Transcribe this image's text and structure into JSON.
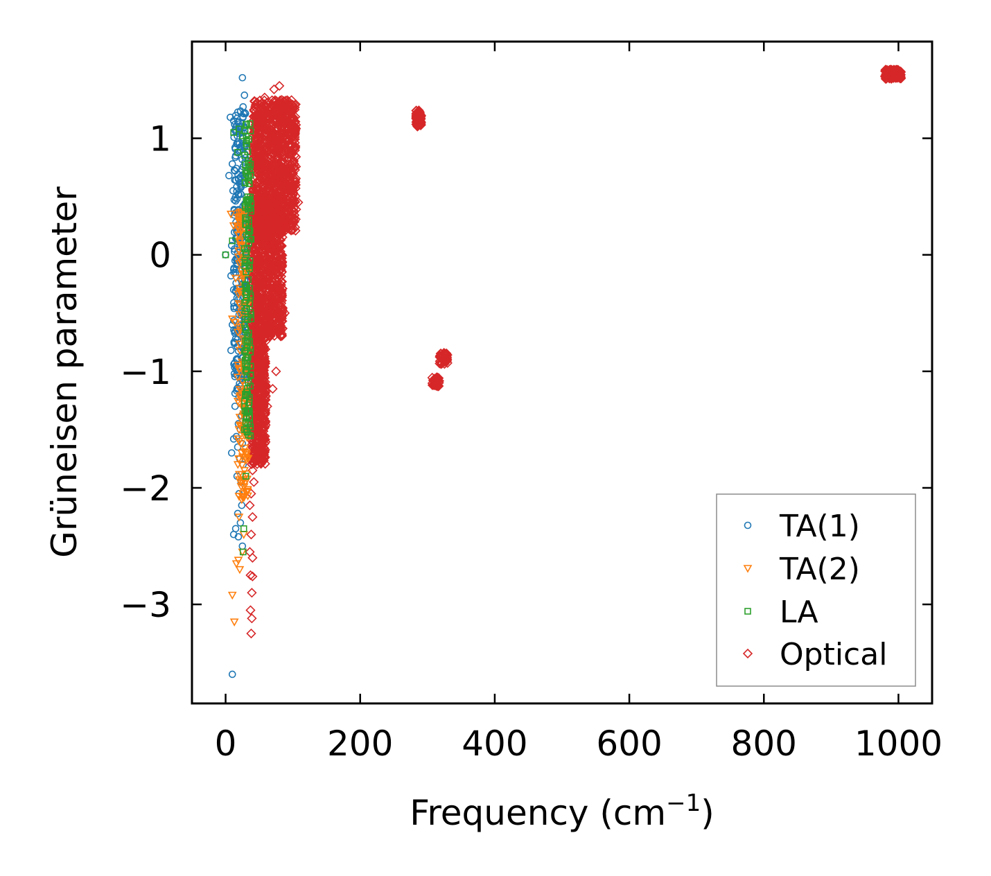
{
  "chart_data": {
    "type": "scatter",
    "xlabel": "Frequency (cm",
    "xlabel_sup": "−1",
    "xlabel_close": ")",
    "ylabel": "Grüneisen parameter",
    "xlim": [
      -50,
      1050
    ],
    "ylim": [
      -3.85,
      1.83
    ],
    "xticks": [
      0,
      200,
      400,
      600,
      800,
      1000
    ],
    "xtick_labels": [
      "0",
      "200",
      "400",
      "600",
      "800",
      "1000"
    ],
    "yticks": [
      -3,
      -2,
      -1,
      0,
      1
    ],
    "ytick_labels": [
      "−3",
      "−2",
      "−1",
      "0",
      "1"
    ],
    "legend_position": "lower-right",
    "series": [
      {
        "name": "TA(1)",
        "marker": "circle",
        "color": "#1f77b4",
        "points": [
          [
            25,
            1.52
          ],
          [
            28,
            1.37
          ],
          [
            26,
            1.27
          ],
          [
            7,
            1.18
          ],
          [
            12,
            1.15
          ],
          [
            20,
            1.1
          ],
          [
            24,
            1.05
          ],
          [
            18,
            0.95
          ],
          [
            22,
            0.9
          ],
          [
            15,
            0.85
          ],
          [
            10,
            0.78
          ],
          [
            14,
            0.72
          ],
          [
            5,
            0.68
          ],
          [
            19,
            0.65
          ],
          [
            23,
            0.6
          ],
          [
            11,
            0.55
          ],
          [
            17,
            0.48
          ],
          [
            26,
            0.42
          ],
          [
            13,
            0.38
          ],
          [
            21,
            0.3
          ],
          [
            16,
            0.22
          ],
          [
            24,
            0.15
          ],
          [
            9,
            0.08
          ],
          [
            18,
            0.02
          ],
          [
            0,
            0
          ],
          [
            14,
            -0.05
          ],
          [
            22,
            -0.12
          ],
          [
            8,
            -0.18
          ],
          [
            25,
            -0.25
          ],
          [
            12,
            -0.3
          ],
          [
            19,
            -0.38
          ],
          [
            16,
            -0.45
          ],
          [
            23,
            -0.52
          ],
          [
            10,
            -0.6
          ],
          [
            20,
            -0.68
          ],
          [
            15,
            -0.72
          ],
          [
            26,
            -0.8
          ],
          [
            8,
            -0.82
          ],
          [
            18,
            -0.9
          ],
          [
            22,
            -0.98
          ],
          [
            13,
            -1.02
          ],
          [
            25,
            -1.08
          ],
          [
            17,
            -1.15
          ],
          [
            20,
            -1.22
          ],
          [
            14,
            -1.3
          ],
          [
            24,
            -1.38
          ],
          [
            19,
            -1.45
          ],
          [
            22,
            -1.5
          ],
          [
            16,
            -1.56
          ],
          [
            12,
            -1.58
          ],
          [
            25,
            -1.62
          ],
          [
            18,
            -1.65
          ],
          [
            9,
            -1.7
          ],
          [
            21,
            -1.75
          ],
          [
            26,
            -1.8
          ],
          [
            17,
            -1.9
          ],
          [
            23,
            -1.95
          ],
          [
            20,
            -2.05
          ],
          [
            24,
            -2.15
          ],
          [
            18,
            -2.22
          ],
          [
            22,
            -2.3
          ],
          [
            15,
            -2.35
          ],
          [
            12,
            -2.4
          ],
          [
            19,
            -2.42
          ],
          [
            25,
            -2.5
          ],
          [
            10,
            -3.6
          ]
        ],
        "bands": [
          {
            "x": [
              12,
              30
            ],
            "y": [
              -1.2,
              1.25
            ],
            "n": 220
          }
        ]
      },
      {
        "name": "TA(2)",
        "marker": "triangle-down",
        "color": "#ff7f0e",
        "points": [
          [
            8,
            0.35
          ],
          [
            12,
            0.25
          ],
          [
            15,
            -0.2
          ],
          [
            10,
            -0.55
          ],
          [
            14,
            -0.58
          ],
          [
            22,
            -0.62
          ],
          [
            18,
            -1.05
          ],
          [
            26,
            -1.2
          ],
          [
            20,
            -1.5
          ],
          [
            24,
            -1.7
          ],
          [
            28,
            -1.85
          ],
          [
            22,
            -1.95
          ],
          [
            26,
            -2.05
          ],
          [
            24,
            -2.1
          ],
          [
            20,
            -2.25
          ],
          [
            27,
            -2.4
          ],
          [
            25,
            -2.55
          ],
          [
            19,
            -2.62
          ],
          [
            16,
            -2.65
          ],
          [
            21,
            -2.7
          ],
          [
            10,
            -2.92
          ],
          [
            13,
            -3.15
          ]
        ],
        "bands": [
          {
            "x": [
              18,
              34
            ],
            "y": [
              -2.1,
              0.4
            ],
            "n": 160
          }
        ]
      },
      {
        "name": "LA",
        "marker": "square",
        "color": "#2ca02c",
        "points": [
          [
            12,
            1.05
          ],
          [
            20,
            1.08
          ],
          [
            25,
            1.02
          ],
          [
            18,
            0.88
          ],
          [
            10,
            0.12
          ],
          [
            0,
            0
          ],
          [
            28,
            -1.5
          ],
          [
            30,
            -1.9
          ],
          [
            27,
            -2.35
          ],
          [
            26,
            -2.55
          ]
        ],
        "bands": [
          {
            "x": [
              28,
              38
            ],
            "y": [
              -1.6,
              1.15
            ],
            "n": 160
          }
        ]
      },
      {
        "name": "Optical",
        "marker": "diamond",
        "color": "#d62728",
        "points": [
          [
            80,
            1.45
          ],
          [
            72,
            1.42
          ],
          [
            58,
            1.35
          ],
          [
            52,
            1.25
          ],
          [
            46,
            1.15
          ],
          [
            42,
            1.05
          ],
          [
            108,
            0.45
          ],
          [
            104,
            0.6
          ],
          [
            100,
            0.7
          ],
          [
            88,
            -0.5
          ],
          [
            82,
            -0.7
          ],
          [
            75,
            -1.0
          ],
          [
            70,
            -1.15
          ],
          [
            62,
            -1.3
          ],
          [
            55,
            -1.45
          ],
          [
            48,
            -1.55
          ],
          [
            58,
            -1.62
          ],
          [
            44,
            -1.75
          ],
          [
            40,
            -1.85
          ],
          [
            42,
            -1.95
          ],
          [
            38,
            -2.05
          ],
          [
            36,
            -2.15
          ],
          [
            40,
            -2.25
          ],
          [
            38,
            -2.4
          ],
          [
            36,
            -2.55
          ],
          [
            40,
            -2.6
          ],
          [
            37,
            -2.75
          ],
          [
            40,
            -2.76
          ],
          [
            39,
            -2.9
          ],
          [
            37,
            -3.05
          ],
          [
            39,
            -3.12
          ],
          [
            38,
            -3.25
          ]
        ],
        "bands": [
          {
            "x": [
              40,
              105
            ],
            "y": [
              0.2,
              1.33
            ],
            "n": 1100
          },
          {
            "x": [
              38,
              85
            ],
            "y": [
              -0.7,
              0.5
            ],
            "n": 900
          },
          {
            "x": [
              38,
              60
            ],
            "y": [
              -1.8,
              -0.6
            ],
            "n": 500
          },
          {
            "x": [
              283,
              291
            ],
            "y": [
              1.1,
              1.24
            ],
            "n": 70
          },
          {
            "x": [
              307,
              318
            ],
            "y": [
              -1.13,
              -1.05
            ],
            "n": 45
          },
          {
            "x": [
              318,
              330
            ],
            "y": [
              -0.94,
              -0.84
            ],
            "n": 45
          },
          {
            "x": [
              980,
              1004
            ],
            "y": [
              1.51,
              1.59
            ],
            "n": 120
          }
        ]
      }
    ]
  }
}
